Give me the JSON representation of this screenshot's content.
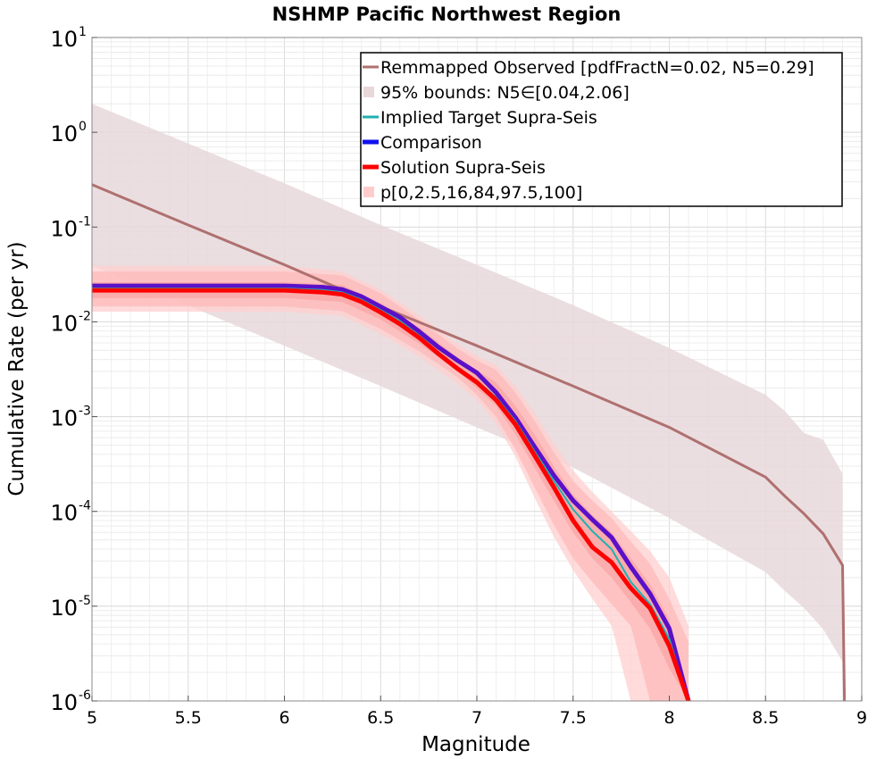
{
  "chart_data": {
    "type": "line",
    "title": "NSHMP Pacific Northwest Region",
    "xlabel": "Magnitude",
    "ylabel": "Cumulative Rate (per yr)",
    "xlim": [
      5,
      9
    ],
    "ylim": [
      1e-06,
      10
    ],
    "yscale": "log",
    "grid": true,
    "legend_position": "top-right",
    "x_ticks": [
      5,
      5.5,
      6,
      6.5,
      7,
      7.5,
      8,
      8.5,
      9
    ],
    "x_tick_labels": [
      "5",
      "5.5",
      "6",
      "6.5",
      "7",
      "7.5",
      "8",
      "8.5",
      "9"
    ],
    "y_ticks": [
      {
        "base": "10",
        "exp": "-6",
        "value": 1e-06
      },
      {
        "base": "10",
        "exp": "-5",
        "value": 1e-05
      },
      {
        "base": "10",
        "exp": "-4",
        "value": 0.0001
      },
      {
        "base": "10",
        "exp": "-3",
        "value": 0.001
      },
      {
        "base": "10",
        "exp": "-2",
        "value": 0.01
      },
      {
        "base": "10",
        "exp": "-1",
        "value": 0.1
      },
      {
        "base": "10",
        "exp": "0",
        "value": 1
      },
      {
        "base": "10",
        "exp": "1",
        "value": 10
      }
    ],
    "colors": {
      "observed": "#b07070",
      "observed_bounds": "#e8d8da",
      "implied_target": "#20b0b0",
      "comparison": "#1010ee",
      "solution": "#ff0000",
      "solution_bands": "#ffb0b0"
    },
    "legend": [
      {
        "label": "Remmapped Observed [pdfFractN=0.02, N5=0.29]",
        "kind": "line",
        "color": "#b07070"
      },
      {
        "label": "95% bounds: N5∈[0.04,2.06]",
        "kind": "fill",
        "color": "#e8d8da"
      },
      {
        "label": "Implied Target Supra-Seis",
        "kind": "line",
        "color": "#20b0b0"
      },
      {
        "label": "Comparison",
        "kind": "thickline",
        "color": "#1010ee"
      },
      {
        "label": "Solution Supra-Seis",
        "kind": "thickline",
        "color": "#ff0000"
      },
      {
        "label": "p[0,2.5,16,84,97.5,100]",
        "kind": "fill",
        "color": "#ffcccc"
      }
    ],
    "series": [
      {
        "name": "Remmapped Observed [pdfFractN=0.02, N5=0.29]",
        "x": [
          5,
          5.5,
          6,
          6.5,
          7,
          7.5,
          8,
          8.5,
          8.6,
          8.7,
          8.8,
          8.9,
          8.91
        ],
        "y": [
          0.28,
          0.105,
          0.04,
          0.0145,
          0.0056,
          0.0021,
          0.00077,
          0.00023,
          0.000145,
          9.45e-05,
          5.8e-05,
          2.7e-05,
          8e-07
        ]
      },
      {
        "name": "95% bounds: N5∈[0.04,2.06]",
        "x": [
          5,
          5.5,
          6,
          6.5,
          7,
          7.5,
          8,
          8.5,
          8.6,
          8.7,
          8.8,
          8.9
        ],
        "upper": [
          2.0,
          0.76,
          0.29,
          0.105,
          0.04,
          0.015,
          0.0053,
          0.0017,
          0.00115,
          0.00067,
          0.00057,
          0.00025
        ],
        "lower": [
          0.039,
          0.0148,
          0.0056,
          0.0021,
          0.00077,
          0.00029,
          8.51e-05,
          2.29e-05,
          1.45e-05,
          9.6e-06,
          5.7e-06,
          2.6e-06
        ]
      },
      {
        "name": "Implied Target Supra-Seis",
        "x": [
          5,
          5.5,
          6,
          6.2,
          6.3,
          6.4,
          6.5,
          6.6,
          6.7,
          6.8,
          6.9,
          7,
          7.1,
          7.2,
          7.3,
          7.4,
          7.5,
          7.6,
          7.7,
          7.8,
          7.9,
          8,
          8.1
        ],
        "y": [
          0.0225,
          0.0225,
          0.0225,
          0.0217,
          0.0205,
          0.0172,
          0.0133,
          0.0102,
          0.0072,
          0.0048,
          0.0033,
          0.0024,
          0.0016,
          0.0009,
          0.00043,
          0.00021,
          0.000105,
          6.2e-05,
          4e-05,
          1.8e-05,
          1.05e-05,
          4.5e-06,
          8e-07
        ]
      },
      {
        "name": "Comparison",
        "x": [
          5,
          5.5,
          6,
          6.2,
          6.3,
          6.4,
          6.5,
          6.6,
          6.7,
          6.8,
          6.9,
          7,
          7.1,
          7.2,
          7.3,
          7.4,
          7.5,
          7.6,
          7.7,
          7.8,
          7.9,
          8,
          8.1
        ],
        "y": [
          0.024,
          0.024,
          0.024,
          0.0232,
          0.022,
          0.0185,
          0.0144,
          0.0112,
          0.0079,
          0.0054,
          0.0039,
          0.0029,
          0.0018,
          0.00098,
          0.00048,
          0.00024,
          0.00013,
          8.2e-05,
          5.3e-05,
          2.6e-05,
          1.35e-05,
          5.8e-06,
          8e-07
        ]
      },
      {
        "name": "Solution Supra-Seis",
        "x": [
          5,
          5.5,
          6,
          6.2,
          6.3,
          6.4,
          6.5,
          6.6,
          6.7,
          6.8,
          6.9,
          7,
          7.1,
          7.2,
          7.3,
          7.4,
          7.5,
          7.6,
          7.7,
          7.8,
          7.9,
          8,
          8.1
        ],
        "y": [
          0.0215,
          0.0215,
          0.0215,
          0.0205,
          0.0195,
          0.0163,
          0.0126,
          0.0095,
          0.0068,
          0.0046,
          0.0032,
          0.0023,
          0.0015,
          0.00083,
          0.00039,
          0.00018,
          8e-05,
          4.2e-05,
          2.9e-05,
          1.55e-05,
          9.5e-06,
          3.8e-06,
          8e-07
        ]
      },
      {
        "name": "p[0,2.5,16,84,97.5,100]",
        "x": [
          5,
          5.5,
          6,
          6.3,
          6.5,
          6.7,
          6.9,
          7,
          7.1,
          7.2,
          7.3,
          7.4,
          7.5,
          7.6,
          7.7,
          7.8,
          7.9,
          8,
          8.1
        ],
        "p0": [
          0.0128,
          0.0128,
          0.0128,
          0.0115,
          0.0074,
          0.0043,
          0.0022,
          0.0015,
          0.00085,
          0.00038,
          0.00014,
          5.4e-05,
          2.4e-05,
          1.2e-05,
          6.2e-06,
          8e-07,
          8e-07,
          8e-07,
          8e-07
        ],
        "p2_5": [
          0.0145,
          0.0145,
          0.0145,
          0.013,
          0.0084,
          0.0049,
          0.0026,
          0.0017,
          0.001,
          0.00045,
          0.00018,
          7.2e-05,
          3.2e-05,
          1.8e-05,
          1.05e-05,
          6.2e-06,
          8e-07,
          8e-07,
          8e-07
        ],
        "p16": [
          0.0178,
          0.0178,
          0.0178,
          0.0162,
          0.0106,
          0.0059,
          0.003,
          0.002,
          0.0013,
          0.00065,
          0.00029,
          0.00013,
          6e-05,
          3.2e-05,
          2e-05,
          1.1e-05,
          5.8e-06,
          2.2e-06,
          8e-07
        ],
        "p84": [
          0.0262,
          0.0262,
          0.0262,
          0.0245,
          0.0158,
          0.0087,
          0.0042,
          0.0031,
          0.0023,
          0.0013,
          0.00065,
          0.0003,
          0.00015,
          9.2e-05,
          6e-05,
          3.2e-05,
          1.7e-05,
          7.2e-06,
          8e-07
        ],
        "p97_5": [
          0.034,
          0.034,
          0.034,
          0.031,
          0.02,
          0.0105,
          0.0052,
          0.0039,
          0.0031,
          0.0018,
          0.0009,
          0.00042,
          0.00021,
          0.00013,
          8.5e-05,
          4.8e-05,
          2.8e-05,
          1.2e-05,
          4.2e-06
        ],
        "p100": [
          0.039,
          0.039,
          0.039,
          0.034,
          0.022,
          0.0118,
          0.0058,
          0.0044,
          0.0035,
          0.0021,
          0.0011,
          0.00052,
          0.00027,
          0.00016,
          0.0001,
          6.2e-05,
          3.8e-05,
          2e-05,
          6.2e-06
        ]
      }
    ]
  }
}
